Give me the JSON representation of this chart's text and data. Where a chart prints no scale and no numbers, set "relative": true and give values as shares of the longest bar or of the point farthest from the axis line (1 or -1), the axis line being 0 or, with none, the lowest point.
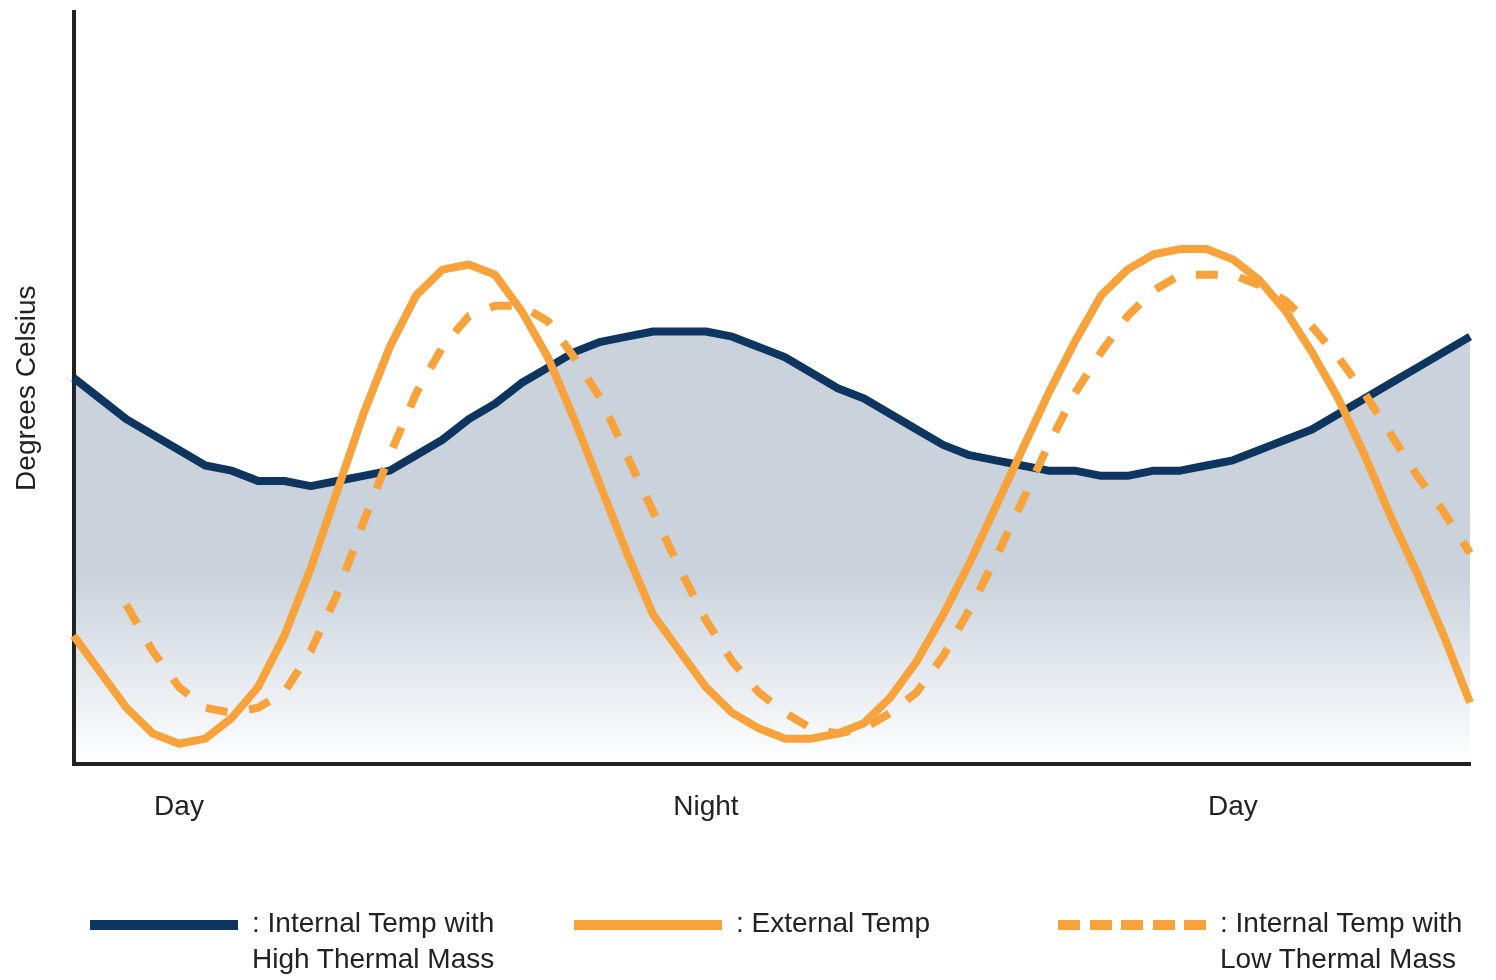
{
  "chart_data": {
    "type": "line",
    "relative": true,
    "ylabel": "Degrees Celsius",
    "categories": [
      null,
      null,
      null,
      null,
      "Day",
      null,
      null,
      null,
      null,
      null,
      null,
      null,
      null,
      null,
      null,
      null,
      null,
      null,
      null,
      null,
      null,
      null,
      null,
      null,
      "Night",
      null,
      null,
      null,
      null,
      null,
      null,
      null,
      null,
      null,
      null,
      null,
      null,
      null,
      null,
      null,
      null,
      null,
      null,
      null,
      "Day",
      null,
      null,
      null,
      null,
      null,
      null,
      null,
      null,
      null
    ],
    "series": [
      {
        "name": ": Internal Temp with High Thermal Mass",
        "type": "area",
        "color": "#0d3560",
        "line_style": "solid",
        "values": [
          0.75,
          0.71,
          0.67,
          0.64,
          0.61,
          0.58,
          0.57,
          0.55,
          0.55,
          0.54,
          0.55,
          0.56,
          0.57,
          0.6,
          0.63,
          0.67,
          0.7,
          0.74,
          0.77,
          0.8,
          0.82,
          0.83,
          0.84,
          0.84,
          0.84,
          0.83,
          0.81,
          0.79,
          0.76,
          0.73,
          0.71,
          0.68,
          0.65,
          0.62,
          0.6,
          0.59,
          0.58,
          0.57,
          0.57,
          0.56,
          0.56,
          0.57,
          0.57,
          0.58,
          0.59,
          0.61,
          0.63,
          0.65,
          0.68,
          0.71,
          0.74,
          0.77,
          0.8,
          0.83
        ]
      },
      {
        "name": ": External Temp",
        "type": "line",
        "color": "#f7a23b",
        "line_style": "solid",
        "values": [
          0.25,
          0.18,
          0.11,
          0.06,
          0.04,
          0.05,
          0.09,
          0.15,
          0.25,
          0.38,
          0.53,
          0.68,
          0.81,
          0.91,
          0.96,
          0.97,
          0.95,
          0.88,
          0.79,
          0.67,
          0.54,
          0.41,
          0.29,
          0.22,
          0.15,
          0.1,
          0.07,
          0.05,
          0.05,
          0.06,
          0.08,
          0.13,
          0.2,
          0.29,
          0.39,
          0.5,
          0.61,
          0.72,
          0.82,
          0.91,
          0.96,
          0.99,
          1,
          1,
          0.98,
          0.94,
          0.88,
          0.8,
          0.71,
          0.6,
          0.48,
          0.37,
          0.25,
          0.12
        ]
      },
      {
        "name": ": Internal Temp with Low Thermal Mass",
        "type": "line",
        "color": "#f7a23b",
        "line_style": "dashed",
        "values": [
          null,
          null,
          0.31,
          0.22,
          0.15,
          0.11,
          0.1,
          0.11,
          0.14,
          0.22,
          0.33,
          0.47,
          0.6,
          0.72,
          0.81,
          0.87,
          0.89,
          0.89,
          0.86,
          0.79,
          0.71,
          0.6,
          0.49,
          0.38,
          0.28,
          0.2,
          0.14,
          0.1,
          0.07,
          0.06,
          0.07,
          0.1,
          0.14,
          0.21,
          0.3,
          0.4,
          0.51,
          0.62,
          0.72,
          0.8,
          0.87,
          0.92,
          0.95,
          0.95,
          0.95,
          0.93,
          0.9,
          0.85,
          0.79,
          0.72,
          0.64,
          0.56,
          0.49,
          0.41
        ]
      }
    ],
    "grid": false,
    "marker": "none",
    "legend": "bottom"
  }
}
